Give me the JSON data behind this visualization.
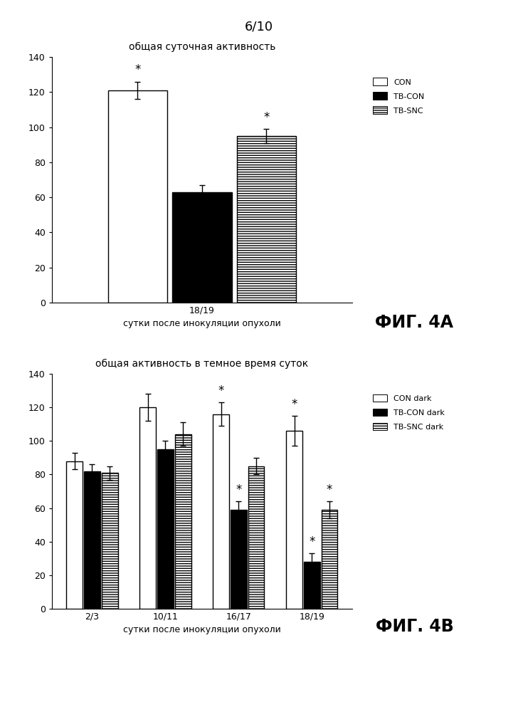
{
  "page_label": "6/10",
  "fig4a": {
    "title": "общая суточная активность",
    "xlabel": "сутки после инокуляции опухоли",
    "xtick_labels": [
      "18/19"
    ],
    "ylim": [
      0,
      140
    ],
    "yticks": [
      0,
      20,
      40,
      60,
      80,
      100,
      120,
      140
    ],
    "groups": [
      "CON",
      "TB-CON",
      "TB-SNC"
    ],
    "values": [
      121,
      63,
      95
    ],
    "errors": [
      5,
      4,
      4
    ],
    "bar_colors": [
      "white",
      "black",
      "white"
    ],
    "bar_hatches": [
      "",
      "",
      "-----"
    ],
    "bar_edgecolors": [
      "black",
      "black",
      "black"
    ],
    "sig_stars": [
      true,
      false,
      true
    ],
    "legend_labels": [
      "CON",
      "TB-CON",
      "TB-SNC"
    ],
    "legend_hatches": [
      "",
      "",
      "-----"
    ],
    "legend_colors": [
      "white",
      "black",
      "white"
    ],
    "caption": "ФИГ. 4A"
  },
  "fig4b": {
    "title": "общая активность в темное время суток",
    "xlabel": "сутки после инокуляции опухоли",
    "xtick_labels": [
      "2/3",
      "10/11",
      "16/17",
      "18/19"
    ],
    "ylim": [
      0,
      140
    ],
    "yticks": [
      0,
      20,
      40,
      60,
      80,
      100,
      120,
      140
    ],
    "groups": [
      "CON dark",
      "TB-CON dark",
      "TB-SNC dark"
    ],
    "values": [
      [
        88,
        82,
        81
      ],
      [
        120,
        95,
        104
      ],
      [
        116,
        59,
        85
      ],
      [
        106,
        28,
        59
      ]
    ],
    "errors": [
      [
        5,
        4,
        4
      ],
      [
        8,
        5,
        7
      ],
      [
        7,
        5,
        5
      ],
      [
        9,
        5,
        5
      ]
    ],
    "bar_colors": [
      "white",
      "black",
      "white"
    ],
    "bar_hatches": [
      "",
      "",
      "-----"
    ],
    "bar_edgecolors": [
      "black",
      "black",
      "black"
    ],
    "sig_stars": [
      [
        false,
        false,
        false
      ],
      [
        false,
        false,
        false
      ],
      [
        true,
        true,
        false
      ],
      [
        true,
        true,
        true
      ]
    ],
    "legend_labels": [
      "CON dark",
      "TB-CON dark",
      "TB-SNC dark"
    ],
    "legend_hatches": [
      "",
      "",
      "-----"
    ],
    "legend_colors": [
      "white",
      "black",
      "white"
    ],
    "caption": "ФИГ. 4B"
  }
}
